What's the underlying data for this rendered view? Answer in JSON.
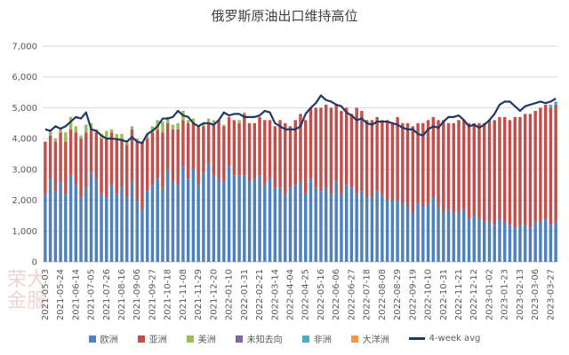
{
  "chart_data": {
    "type": "bar",
    "stacked": true,
    "title": "俄罗斯原油出口维持高位",
    "xlabel": "",
    "ylabel": "",
    "ylim": [
      0,
      7000
    ],
    "y_ticks": [
      "0",
      "1,000",
      "2,000",
      "3,000",
      "4,000",
      "5,000",
      "6,000",
      "7,000"
    ],
    "grid": true,
    "legend_position": "bottom",
    "categories": [
      "2021-05-03",
      "2021-05-10",
      "2021-05-17",
      "2021-05-24",
      "2021-05-31",
      "2021-06-07",
      "2021-06-14",
      "2021-06-21",
      "2021-06-28",
      "2021-07-05",
      "2021-07-12",
      "2021-07-19",
      "2021-07-26",
      "2021-08-02",
      "2021-08-09",
      "2021-08-16",
      "2021-08-23",
      "2021-08-30",
      "2021-09-06",
      "2021-09-13",
      "2021-09-20",
      "2021-09-27",
      "2021-10-04",
      "2021-10-11",
      "2021-10-18",
      "2021-10-25",
      "2021-11-01",
      "2021-11-08",
      "2021-11-15",
      "2021-11-22",
      "2021-11-29",
      "2021-12-06",
      "2021-12-13",
      "2021-12-20",
      "2021-12-27",
      "2022-01-03",
      "2022-01-10",
      "2022-01-17",
      "2022-01-24",
      "2022-01-31",
      "2022-02-07",
      "2022-02-14",
      "2022-02-21",
      "2022-02-28",
      "2022-03-07",
      "2022-03-14",
      "2022-03-21",
      "2022-03-28",
      "2022-04-04",
      "2022-04-11",
      "2022-04-18",
      "2022-04-25",
      "2022-05-02",
      "2022-05-09",
      "2022-05-16",
      "2022-05-23",
      "2022-05-30",
      "2022-06-06",
      "2022-06-13",
      "2022-06-20",
      "2022-06-27",
      "2022-07-04",
      "2022-07-11",
      "2022-07-18",
      "2022-07-25",
      "2022-08-01",
      "2022-08-08",
      "2022-08-15",
      "2022-08-22",
      "2022-08-29",
      "2022-09-05",
      "2022-09-12",
      "2022-09-19",
      "2022-09-26",
      "2022-10-03",
      "2022-10-10",
      "2022-10-17",
      "2022-10-24",
      "2022-10-31",
      "2022-11-07",
      "2022-11-14",
      "2022-11-21",
      "2022-11-28",
      "2022-12-05",
      "2022-12-12",
      "2022-12-19",
      "2022-12-26",
      "2023-01-02",
      "2023-01-09",
      "2023-01-16",
      "2023-01-23",
      "2023-01-30",
      "2023-02-06",
      "2023-02-13",
      "2023-02-20",
      "2023-02-27",
      "2023-03-06",
      "2023-03-13",
      "2023-03-20",
      "2023-03-27",
      "2023-04-03"
    ],
    "x_tick_labels": [
      "2021-05-03",
      "2021-05-24",
      "2021-06-14",
      "2021-07-05",
      "2021-07-26",
      "2021-08-16",
      "2021-09-06",
      "2021-09-27",
      "2021-10-18",
      "2021-11-08",
      "2021-11-29",
      "2021-12-20",
      "2022-01-10",
      "2022-01-31",
      "2022-02-21",
      "2022-03-14",
      "2022-04-04",
      "2022-04-25",
      "2022-05-16",
      "2022-06-06",
      "2022-06-27",
      "2022-07-18",
      "2022-08-08",
      "2022-08-29",
      "2022-09-19",
      "2022-10-10",
      "2022-10-31",
      "2022-11-21",
      "2022-12-12",
      "2023-01-02",
      "2023-01-23",
      "2023-02-13",
      "2023-03-06",
      "2023-03-27"
    ],
    "series": [
      {
        "name": "欧洲",
        "color": "#4f81bd",
        "values": [
          2200,
          2700,
          2300,
          2600,
          2200,
          2800,
          2500,
          2100,
          2400,
          2900,
          2700,
          2200,
          2100,
          2500,
          2200,
          2400,
          2100,
          2600,
          2000,
          1700,
          2300,
          2500,
          2700,
          2400,
          3000,
          2600,
          2500,
          3100,
          2700,
          3000,
          2500,
          2900,
          3200,
          2800,
          2700,
          2600,
          3100,
          2800,
          2800,
          2800,
          2600,
          2700,
          2800,
          2500,
          2700,
          2400,
          2400,
          2200,
          2400,
          2500,
          2600,
          2200,
          2700,
          2400,
          2300,
          2400,
          2200,
          2600,
          2200,
          2500,
          2400,
          2200,
          2300,
          2100,
          2100,
          2300,
          2200,
          2000,
          2000,
          2000,
          1900,
          1800,
          1600,
          1900,
          1800,
          1900,
          2100,
          1800,
          1600,
          1700,
          1600,
          1600,
          1700,
          1400,
          1500,
          1400,
          1300,
          1300,
          1200,
          1400,
          1300,
          1200,
          1100,
          1200,
          1200,
          1100,
          1300,
          1300,
          1400,
          1200,
          1300
        ]
      },
      {
        "name": "亚洲",
        "color": "#c0504d",
        "values": [
          1700,
          1400,
          1600,
          1600,
          1700,
          1500,
          1700,
          1900,
          1800,
          1400,
          1500,
          1800,
          1900,
          1700,
          1800,
          1600,
          1700,
          1700,
          1900,
          2200,
          1700,
          1700,
          1600,
          1800,
          1500,
          1700,
          1800,
          1500,
          1800,
          1500,
          1900,
          1500,
          1300,
          1700,
          1900,
          1800,
          1600,
          1800,
          1700,
          2000,
          1900,
          1800,
          1900,
          2100,
          1900,
          2000,
          2200,
          2300,
          2000,
          2100,
          2200,
          2400,
          2300,
          2600,
          2700,
          2700,
          2800,
          2500,
          2700,
          2500,
          2400,
          2800,
          2600,
          2500,
          2500,
          2400,
          2400,
          2600,
          2500,
          2700,
          2600,
          2700,
          2800,
          2600,
          2700,
          2700,
          2600,
          2800,
          3000,
          2800,
          2900,
          3000,
          2900,
          3100,
          3000,
          3100,
          3200,
          3300,
          3400,
          3300,
          3400,
          3400,
          3600,
          3500,
          3600,
          3700,
          3600,
          3700,
          3700,
          3800,
          3800
        ]
      },
      {
        "name": "美洲",
        "color": "#9bbb59",
        "values": [
          0,
          200,
          100,
          150,
          300,
          400,
          200,
          100,
          250,
          200,
          100,
          150,
          250,
          100,
          150,
          150,
          100,
          100,
          100,
          0,
          150,
          200,
          300,
          350,
          200,
          150,
          200,
          300,
          100,
          150,
          0,
          100,
          150,
          100,
          0,
          50,
          0,
          0,
          100,
          50,
          0,
          0,
          0,
          0,
          0,
          0,
          0,
          0,
          0,
          0,
          0,
          0,
          0,
          0,
          0,
          0,
          0,
          0,
          0,
          0,
          0,
          0,
          0,
          0,
          0,
          0,
          0,
          0,
          0,
          0,
          0,
          0,
          0,
          0,
          0,
          0,
          0,
          0,
          0,
          0,
          0,
          0,
          0,
          0,
          0,
          0,
          0,
          0,
          0,
          0,
          0,
          0,
          0,
          0,
          0,
          0,
          0,
          0,
          0,
          0,
          0
        ]
      },
      {
        "name": "未知去向",
        "color": "#8064a2",
        "values": [
          0,
          0,
          0,
          0,
          0,
          0,
          0,
          0,
          0,
          0,
          0,
          0,
          0,
          0,
          0,
          0,
          0,
          0,
          0,
          0,
          0,
          0,
          0,
          0,
          0,
          0,
          0,
          0,
          0,
          0,
          0,
          0,
          0,
          0,
          0,
          0,
          0,
          0,
          0,
          0,
          0,
          0,
          0,
          0,
          0,
          0,
          0,
          0,
          0,
          0,
          0,
          0,
          0,
          0,
          0,
          0,
          0,
          0,
          0,
          0,
          0,
          0,
          0,
          0,
          0,
          0,
          0,
          0,
          0,
          0,
          0,
          0,
          0,
          0,
          0,
          0,
          0,
          0,
          0,
          0,
          0,
          0,
          0,
          0,
          0,
          0,
          0,
          0,
          0,
          0,
          0,
          0,
          0,
          0,
          0,
          0,
          0,
          0,
          0,
          0,
          0
        ]
      },
      {
        "name": "非洲",
        "color": "#4bacc6",
        "values": [
          0,
          0,
          0,
          0,
          0,
          0,
          0,
          0,
          0,
          0,
          0,
          0,
          0,
          0,
          0,
          0,
          0,
          0,
          0,
          0,
          0,
          0,
          0,
          0,
          0,
          0,
          0,
          0,
          0,
          0,
          0,
          0,
          0,
          0,
          0,
          0,
          0,
          0,
          0,
          0,
          0,
          0,
          0,
          0,
          0,
          0,
          0,
          0,
          0,
          0,
          0,
          0,
          0,
          0,
          0,
          0,
          0,
          0,
          0,
          0,
          0,
          0,
          0,
          0,
          0,
          0,
          0,
          0,
          0,
          0,
          0,
          0,
          0,
          0,
          0,
          0,
          0,
          0,
          0,
          0,
          0,
          0,
          0,
          0,
          0,
          0,
          0,
          0,
          0,
          0,
          0,
          0,
          0,
          0,
          0,
          0,
          0,
          0,
          0,
          100,
          100
        ]
      },
      {
        "name": "大洋洲",
        "color": "#f79646",
        "values": [
          0,
          0,
          0,
          0,
          0,
          0,
          0,
          0,
          0,
          0,
          0,
          0,
          0,
          0,
          0,
          0,
          0,
          0,
          0,
          0,
          0,
          0,
          0,
          0,
          0,
          0,
          0,
          0,
          0,
          0,
          0,
          0,
          0,
          0,
          0,
          0,
          0,
          0,
          0,
          0,
          0,
          0,
          0,
          0,
          0,
          0,
          0,
          0,
          0,
          0,
          0,
          0,
          0,
          0,
          0,
          0,
          0,
          0,
          0,
          0,
          0,
          0,
          0,
          0,
          0,
          0,
          0,
          0,
          0,
          0,
          0,
          0,
          0,
          0,
          0,
          0,
          0,
          0,
          0,
          0,
          0,
          0,
          0,
          0,
          0,
          0,
          0,
          0,
          0,
          0,
          0,
          0,
          0,
          0,
          0,
          0,
          0,
          0,
          0,
          0,
          0
        ]
      }
    ],
    "line": {
      "name": "4-week avg",
      "color": "#1f3864",
      "values": [
        4300,
        4250,
        4400,
        4320,
        4400,
        4550,
        4700,
        4650,
        4850,
        4300,
        4250,
        4100,
        4000,
        4000,
        3980,
        3950,
        3900,
        4050,
        3900,
        3850,
        4150,
        4250,
        4400,
        4650,
        4650,
        4700,
        4900,
        4750,
        4700,
        4500,
        4400,
        4500,
        4500,
        4450,
        4600,
        4850,
        4750,
        4800,
        4800,
        4700,
        4700,
        4700,
        4750,
        4900,
        4850,
        4500,
        4400,
        4300,
        4300,
        4300,
        4400,
        4800,
        5000,
        5150,
        5400,
        5250,
        5200,
        5100,
        5050,
        4850,
        4750,
        4600,
        4650,
        4500,
        4450,
        4550,
        4550,
        4550,
        4500,
        4450,
        4350,
        4300,
        4300,
        4150,
        4100,
        4300,
        4400,
        4350,
        4550,
        4700,
        4700,
        4750,
        4600,
        4400,
        4450,
        4350,
        4450,
        4600,
        4800,
        5100,
        5200,
        5200,
        5050,
        4900,
        5050,
        5100,
        5150,
        5200,
        5150,
        5200,
        5300
      ]
    },
    "watermark": "荣大金服"
  }
}
